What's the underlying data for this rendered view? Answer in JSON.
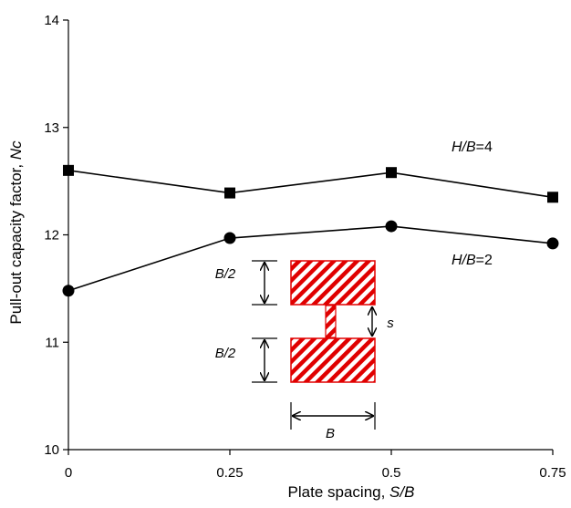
{
  "chart_data": {
    "type": "line",
    "xlabel_prefix": "Plate spacing, ",
    "xlabel_var": "S/B",
    "ylabel_prefix": "Pull-out capacity factor, ",
    "ylabel_var": "Nc",
    "xlim": [
      0,
      0.75
    ],
    "ylim": [
      10,
      14
    ],
    "x_ticks": [
      "0",
      "0.25",
      "0.5",
      "0.75"
    ],
    "y_ticks": [
      "10",
      "11",
      "12",
      "13",
      "14"
    ],
    "x": [
      0,
      0.25,
      0.5,
      0.75
    ],
    "series": [
      {
        "label_var": "H/B",
        "label_suffix": "=4",
        "marker": "square",
        "values": [
          12.6,
          12.39,
          12.58,
          12.35
        ]
      },
      {
        "label_var": "H/B",
        "label_suffix": "=2",
        "marker": "circle",
        "values": [
          11.48,
          11.97,
          12.08,
          11.92
        ]
      }
    ],
    "grid": false,
    "legend": "none",
    "line_color": "#000000",
    "marker_color": "#000000",
    "inset": {
      "plate_color": "#e00000",
      "labels": {
        "top_dim": "B/2",
        "bottom_dim": "B/2",
        "gap_dim": "s",
        "width_dim": "B"
      }
    }
  }
}
